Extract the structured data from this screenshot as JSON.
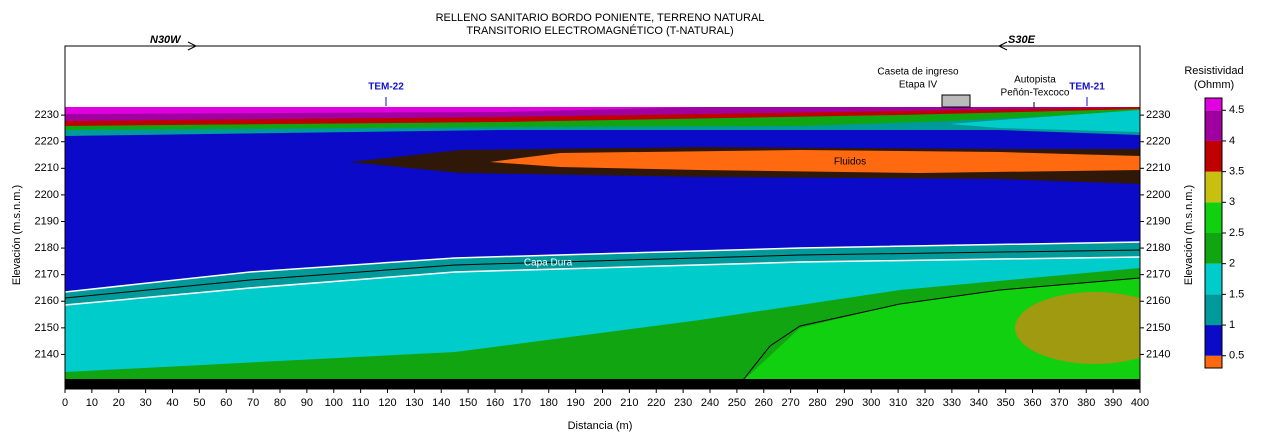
{
  "chart_data": {
    "type": "section",
    "title": [
      "RELLENO SANITARIO BORDO PONIENTE, TERRENO NATURAL",
      "TRANSITORIO ELECTROMAGNÉTICO (T-NATURAL)"
    ],
    "xlabel": "Distancia (m)",
    "ylabel": "Elevación (m.s.n.m.)",
    "xlim": [
      0,
      400
    ],
    "xticks": [
      0,
      10,
      20,
      30,
      40,
      50,
      60,
      70,
      80,
      90,
      100,
      110,
      120,
      130,
      140,
      150,
      160,
      170,
      180,
      190,
      200,
      210,
      220,
      230,
      240,
      250,
      260,
      270,
      280,
      290,
      300,
      310,
      320,
      330,
      340,
      350,
      360,
      370,
      380,
      390,
      400
    ],
    "ylim": [
      2127,
      2256
    ],
    "yticks": [
      2140,
      2150,
      2160,
      2170,
      2180,
      2190,
      2200,
      2210,
      2220,
      2230
    ],
    "annotations": [
      "N30W",
      "S30E",
      "TEM-22",
      "TEM-21",
      "Caseta de ingreso",
      "Etapa IV",
      "Autopista",
      "Peñón-Texcoco",
      "Fluidos",
      "Capa Dura"
    ],
    "colorbar": {
      "title": [
        "Resistividad",
        "(Ohmm)"
      ],
      "lim": [
        0.3,
        4.7
      ],
      "ticks": [
        0.5,
        1,
        1.5,
        2,
        2.5,
        3,
        3.5,
        4,
        4.5
      ],
      "bands": [
        {
          "from": 0.3,
          "to": 0.5,
          "color": "#ff6a10"
        },
        {
          "from": 0.5,
          "to": 1,
          "color": "#0a0ac8"
        },
        {
          "from": 1,
          "to": 1.5,
          "color": "#009a9a"
        },
        {
          "from": 1.5,
          "to": 2,
          "color": "#00cccc"
        },
        {
          "from": 2,
          "to": 2.5,
          "color": "#12a512"
        },
        {
          "from": 2.5,
          "to": 3,
          "color": "#10d010"
        },
        {
          "from": 3,
          "to": 3.5,
          "color": "#c8c010"
        },
        {
          "from": 3.5,
          "to": 4,
          "color": "#c00000"
        },
        {
          "from": 4,
          "to": 4.5,
          "color": "#a000a0"
        },
        {
          "from": 4.5,
          "to": 4.7,
          "color": "#e000e0"
        }
      ]
    }
  }
}
